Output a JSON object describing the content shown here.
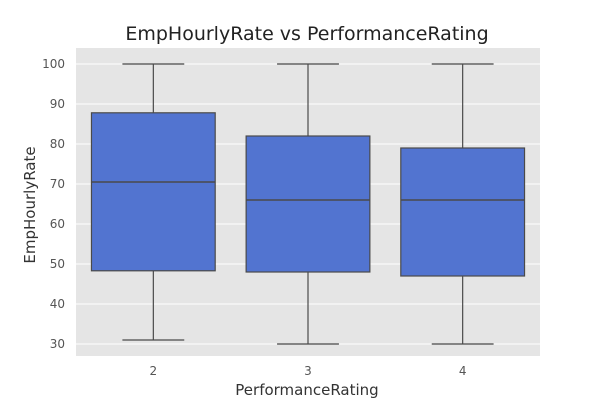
{
  "chart_data": {
    "type": "box",
    "title": "EmpHourlyRate vs PerformanceRating",
    "xlabel": "PerformanceRating",
    "ylabel": "EmpHourlyRate",
    "categories": [
      "2",
      "3",
      "4"
    ],
    "boxes": [
      {
        "category": "2",
        "whisker_low": 31,
        "q1": 48.3,
        "median": 70.5,
        "q3": 87.8,
        "whisker_high": 100
      },
      {
        "category": "3",
        "whisker_low": 30,
        "q1": 48,
        "median": 66,
        "q3": 82,
        "whisker_high": 100
      },
      {
        "category": "4",
        "whisker_low": 30,
        "q1": 47,
        "median": 66,
        "q3": 79,
        "whisker_high": 100
      }
    ],
    "yticks": [
      30,
      40,
      50,
      60,
      70,
      80,
      90,
      100
    ],
    "ylim": [
      27,
      104
    ],
    "grid": true,
    "colors": {
      "box_fill": "#5274d0",
      "box_edge": "#4a4a4a",
      "plot_background": "#e5e5e5",
      "grid": "#ffffff",
      "text": "#222222",
      "tick_text": "#555555"
    }
  }
}
